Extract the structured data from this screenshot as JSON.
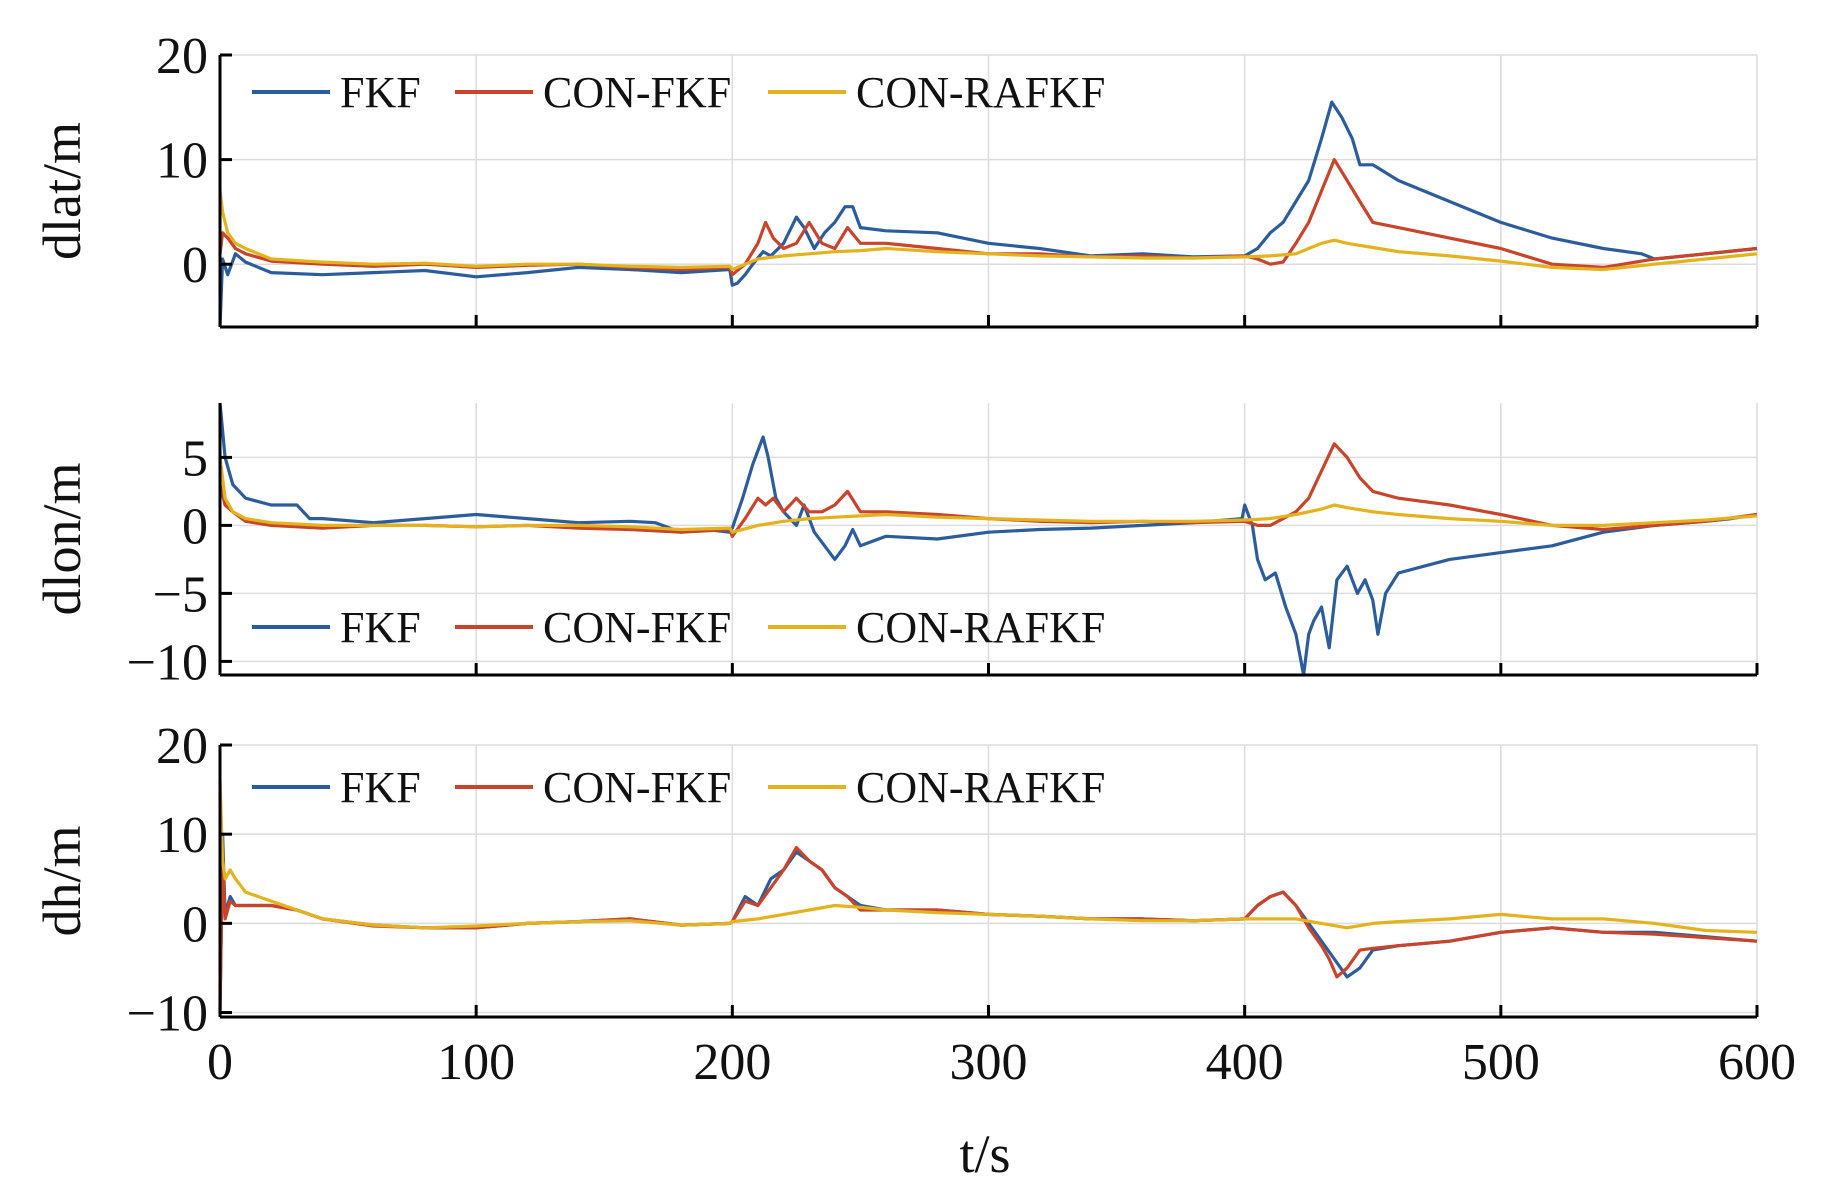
{
  "chart_data": [
    {
      "type": "line",
      "ylabel": "dlat/m",
      "xlabel": "",
      "xlim": [
        0,
        600
      ],
      "ylim": [
        -6,
        20
      ],
      "xticks": [
        "0",
        "100",
        "200",
        "300",
        "400",
        "500",
        "600"
      ],
      "yticks": [
        {
          "value": 0,
          "label": "0"
        },
        {
          "value": 10,
          "label": "10"
        },
        {
          "value": 20,
          "label": "20"
        }
      ],
      "grid": true,
      "legend_position": "top-left",
      "series": [
        {
          "name": "FKF",
          "color": "#2b5d9c",
          "x": [
            0,
            1,
            3,
            6,
            10,
            20,
            40,
            60,
            80,
            100,
            120,
            140,
            160,
            180,
            199,
            200,
            202,
            205,
            208,
            212,
            215,
            220,
            225,
            228,
            232,
            236,
            240,
            244,
            247,
            250,
            260,
            280,
            300,
            320,
            340,
            360,
            380,
            400,
            405,
            410,
            415,
            420,
            425,
            430,
            434,
            438,
            442,
            445,
            450,
            460,
            480,
            500,
            520,
            540,
            555,
            560,
            580,
            600
          ],
          "y": [
            -6,
            0.5,
            -1,
            1,
            0.2,
            -0.8,
            -1,
            -0.8,
            -0.6,
            -1.2,
            -0.8,
            -0.3,
            -0.5,
            -0.8,
            -0.5,
            -2,
            -1.8,
            -1,
            0,
            1.2,
            0.8,
            2,
            4.5,
            3.5,
            1.5,
            3,
            4,
            5.5,
            5.5,
            3.5,
            3.2,
            3,
            2,
            1.5,
            0.8,
            1,
            0.7,
            0.8,
            1.5,
            3,
            4,
            6,
            8,
            12,
            15.5,
            14,
            12,
            9.5,
            9.5,
            8,
            6,
            4,
            2.5,
            1.5,
            1.0,
            0.5,
            1,
            1.5
          ]
        },
        {
          "name": "CON-FKF",
          "color": "#c8442a",
          "x": [
            0,
            1,
            3,
            6,
            10,
            20,
            40,
            60,
            80,
            100,
            120,
            140,
            160,
            180,
            199,
            200,
            205,
            210,
            213,
            216,
            220,
            225,
            230,
            235,
            240,
            245,
            250,
            260,
            280,
            300,
            320,
            340,
            360,
            380,
            400,
            405,
            410,
            415,
            420,
            425,
            430,
            435,
            440,
            445,
            450,
            460,
            480,
            500,
            520,
            540,
            560,
            580,
            600
          ],
          "y": [
            1,
            3,
            2.5,
            1.5,
            1,
            0.3,
            0,
            -0.2,
            0,
            -0.3,
            -0.1,
            0,
            -0.3,
            -0.5,
            -0.3,
            -1,
            0,
            2,
            4,
            2.5,
            1.5,
            2,
            4,
            2,
            1.5,
            3.5,
            2,
            2,
            1.5,
            1,
            1,
            0.7,
            0.8,
            0.6,
            0.8,
            0.5,
            0,
            0.2,
            2,
            4,
            7,
            10,
            8,
            6,
            4,
            3.5,
            2.5,
            1.5,
            0,
            -0.3,
            0.5,
            1,
            1.5
          ]
        },
        {
          "name": "CON-RAFKF",
          "color": "#e3b21d",
          "x": [
            0,
            1,
            3,
            6,
            10,
            20,
            40,
            60,
            80,
            100,
            120,
            140,
            160,
            180,
            199,
            200,
            205,
            210,
            220,
            230,
            240,
            250,
            260,
            280,
            300,
            320,
            340,
            360,
            380,
            400,
            410,
            420,
            425,
            430,
            435,
            440,
            445,
            450,
            460,
            480,
            500,
            520,
            540,
            560,
            580,
            600
          ],
          "y": [
            7,
            5,
            3,
            2,
            1.5,
            0.5,
            0.2,
            0,
            0.1,
            -0.2,
            0,
            0,
            -0.2,
            -0.3,
            -0.2,
            -0.5,
            0,
            0.5,
            0.8,
            1,
            1.2,
            1.3,
            1.5,
            1.2,
            1,
            0.8,
            0.7,
            0.6,
            0.6,
            0.7,
            0.8,
            1,
            1.5,
            2,
            2.3,
            2,
            1.8,
            1.6,
            1.2,
            0.8,
            0.3,
            -0.3,
            -0.5,
            0,
            0.5,
            1
          ]
        }
      ]
    },
    {
      "type": "line",
      "ylabel": "dlon/m",
      "xlabel": "",
      "xlim": [
        0,
        600
      ],
      "ylim": [
        -11,
        9
      ],
      "xticks": [
        "0",
        "100",
        "200",
        "300",
        "400",
        "500",
        "600"
      ],
      "yticks": [
        {
          "value": -10,
          "label": "−10"
        },
        {
          "value": -5,
          "label": "−5"
        },
        {
          "value": 0,
          "label": "0"
        },
        {
          "value": 5,
          "label": "5"
        }
      ],
      "grid": true,
      "legend_position": "bottom-left",
      "series": [
        {
          "name": "FKF",
          "color": "#2b5d9c",
          "x": [
            0,
            2,
            5,
            10,
            20,
            30,
            35,
            40,
            60,
            80,
            100,
            120,
            140,
            160,
            170,
            180,
            190,
            199,
            200,
            204,
            208,
            212,
            214,
            217,
            220,
            225,
            228,
            232,
            236,
            240,
            244,
            247,
            250,
            260,
            280,
            300,
            320,
            340,
            360,
            380,
            399,
            400,
            403,
            405,
            408,
            412,
            416,
            420,
            423,
            425,
            427,
            430,
            433,
            436,
            440,
            444,
            447,
            450,
            452,
            455,
            460,
            470,
            480,
            500,
            520,
            540,
            560,
            580,
            590,
            600
          ],
          "y": [
            9,
            5,
            3,
            2,
            1.5,
            1.5,
            0.5,
            0.5,
            0.2,
            0.5,
            0.8,
            0.5,
            0.2,
            0.3,
            0.2,
            -0.5,
            -0.3,
            -0.5,
            -0.2,
            2,
            4.5,
            6.5,
            5,
            2,
            1,
            0,
            1.5,
            -0.5,
            -1.5,
            -2.5,
            -1.5,
            -0.3,
            -1.5,
            -0.8,
            -1,
            -0.5,
            -0.3,
            -0.2,
            0,
            0.2,
            0.5,
            1.5,
            0,
            -2.5,
            -4,
            -3.5,
            -6,
            -8,
            -11,
            -8,
            -7,
            -6,
            -9,
            -4,
            -3,
            -5,
            -4,
            -5.5,
            -8,
            -5,
            -3.5,
            -3,
            -2.5,
            -2,
            -1.5,
            -0.5,
            0,
            0.3,
            0.5,
            0.8
          ]
        },
        {
          "name": "CON-FKF",
          "color": "#c8442a",
          "x": [
            0,
            2,
            5,
            10,
            20,
            40,
            60,
            80,
            100,
            120,
            140,
            160,
            180,
            199,
            200,
            205,
            210,
            213,
            216,
            220,
            225,
            230,
            235,
            240,
            245,
            250,
            260,
            280,
            300,
            320,
            340,
            360,
            380,
            400,
            405,
            410,
            415,
            420,
            425,
            430,
            435,
            440,
            445,
            450,
            460,
            480,
            500,
            520,
            540,
            560,
            580,
            600
          ],
          "y": [
            3,
            1.5,
            1,
            0.3,
            0,
            -0.2,
            0,
            0,
            -0.1,
            0,
            -0.2,
            -0.3,
            -0.5,
            -0.3,
            -0.8,
            0.5,
            2,
            1.5,
            2,
            1,
            2,
            1,
            1,
            1.5,
            2.5,
            1,
            1,
            0.8,
            0.5,
            0.3,
            0.2,
            0.3,
            0.2,
            0.3,
            0,
            0,
            0.5,
            1,
            2,
            4,
            6,
            5,
            3.5,
            2.5,
            2,
            1.5,
            0.8,
            0,
            -0.3,
            0,
            0.3,
            0.8
          ]
        },
        {
          "name": "CON-RAFKF",
          "color": "#e3b21d",
          "x": [
            0,
            2,
            5,
            10,
            20,
            40,
            60,
            80,
            100,
            120,
            140,
            160,
            180,
            199,
            200,
            210,
            220,
            230,
            240,
            250,
            260,
            280,
            300,
            320,
            340,
            360,
            380,
            400,
            410,
            420,
            430,
            435,
            440,
            450,
            460,
            480,
            500,
            520,
            540,
            560,
            580,
            600
          ],
          "y": [
            5,
            2,
            1,
            0.5,
            0.2,
            0,
            0,
            0,
            -0.1,
            0,
            0,
            -0.1,
            -0.3,
            -0.2,
            -0.5,
            0,
            0.3,
            0.5,
            0.6,
            0.7,
            0.8,
            0.6,
            0.5,
            0.4,
            0.3,
            0.3,
            0.3,
            0.4,
            0.5,
            0.8,
            1.2,
            1.5,
            1.3,
            1,
            0.8,
            0.5,
            0.3,
            0,
            0,
            0.2,
            0.4,
            0.7
          ]
        }
      ]
    },
    {
      "type": "line",
      "ylabel": "dh/m",
      "xlabel": "t/s",
      "xlim": [
        0,
        600
      ],
      "ylim": [
        -10.5,
        20
      ],
      "xticks": [
        "0",
        "100",
        "200",
        "300",
        "400",
        "500",
        "600"
      ],
      "yticks": [
        {
          "value": -10,
          "label": "−10"
        },
        {
          "value": 0,
          "label": "0"
        },
        {
          "value": 10,
          "label": "10"
        },
        {
          "value": 20,
          "label": "20"
        }
      ],
      "grid": true,
      "legend_position": "top-left",
      "series": [
        {
          "name": "FKF",
          "color": "#2b5d9c",
          "x": [
            0,
            1,
            2,
            4,
            6,
            10,
            20,
            30,
            40,
            60,
            80,
            100,
            120,
            140,
            160,
            180,
            199,
            200,
            205,
            210,
            215,
            220,
            225,
            230,
            235,
            240,
            245,
            250,
            260,
            280,
            300,
            320,
            340,
            360,
            380,
            400,
            405,
            410,
            415,
            420,
            425,
            430,
            435,
            440,
            445,
            450,
            460,
            480,
            500,
            520,
            540,
            560,
            580,
            600
          ],
          "y": [
            -10,
            10,
            1,
            3,
            2,
            2,
            2,
            1.5,
            0.5,
            -0.2,
            -0.5,
            -0.5,
            0,
            0.2,
            0.5,
            -0.2,
            0,
            0.2,
            3,
            2,
            5,
            6,
            8,
            7,
            6,
            4,
            3,
            2,
            1.5,
            1.5,
            1,
            0.8,
            0.5,
            0.5,
            0.3,
            0.5,
            2,
            3,
            3.5,
            2,
            0,
            -2,
            -4,
            -6,
            -5,
            -3,
            -2.5,
            -2,
            -1,
            -0.5,
            -1,
            -1,
            -1.5,
            -2
          ]
        },
        {
          "name": "CON-FKF",
          "color": "#c8442a",
          "x": [
            0,
            1,
            2,
            4,
            6,
            10,
            20,
            30,
            40,
            60,
            80,
            100,
            120,
            140,
            160,
            180,
            199,
            200,
            205,
            210,
            215,
            220,
            225,
            230,
            235,
            240,
            245,
            250,
            260,
            280,
            300,
            320,
            340,
            360,
            380,
            400,
            405,
            410,
            415,
            420,
            425,
            430,
            433,
            436,
            440,
            445,
            450,
            460,
            480,
            500,
            520,
            540,
            560,
            580,
            600
          ],
          "y": [
            -10,
            8,
            0.5,
            2.5,
            2,
            2,
            2,
            1.5,
            0.5,
            -0.3,
            -0.5,
            -0.5,
            0,
            0.2,
            0.5,
            -0.2,
            0,
            0.2,
            2.5,
            2,
            4,
            6,
            8.5,
            7,
            6,
            4,
            3,
            1.5,
            1.5,
            1.5,
            1,
            0.8,
            0.5,
            0.5,
            0.3,
            0.5,
            2,
            3,
            3.5,
            2,
            -0.5,
            -2.5,
            -4,
            -6,
            -5,
            -3,
            -2.8,
            -2.5,
            -2,
            -1,
            -0.5,
            -1,
            -1.2,
            -1.6,
            -2
          ]
        },
        {
          "name": "CON-RAFKF",
          "color": "#e3b21d",
          "x": [
            0,
            1,
            2,
            4,
            6,
            10,
            20,
            30,
            40,
            60,
            80,
            100,
            120,
            140,
            160,
            180,
            199,
            200,
            210,
            220,
            230,
            240,
            250,
            260,
            280,
            300,
            320,
            340,
            360,
            380,
            400,
            410,
            420,
            430,
            440,
            450,
            460,
            480,
            500,
            520,
            540,
            560,
            580,
            600
          ],
          "y": [
            16,
            7,
            5,
            6,
            5,
            3.5,
            2.5,
            1.5,
            0.5,
            -0.2,
            -0.5,
            -0.3,
            0,
            0.2,
            0.3,
            -0.2,
            0,
            0.2,
            0.5,
            1,
            1.5,
            2,
            1.8,
            1.5,
            1.2,
            1,
            0.8,
            0.5,
            0.3,
            0.3,
            0.5,
            0.5,
            0.5,
            0,
            -0.5,
            0,
            0.2,
            0.5,
            1,
            0.5,
            0.5,
            0,
            -0.8,
            -1
          ]
        }
      ]
    }
  ]
}
